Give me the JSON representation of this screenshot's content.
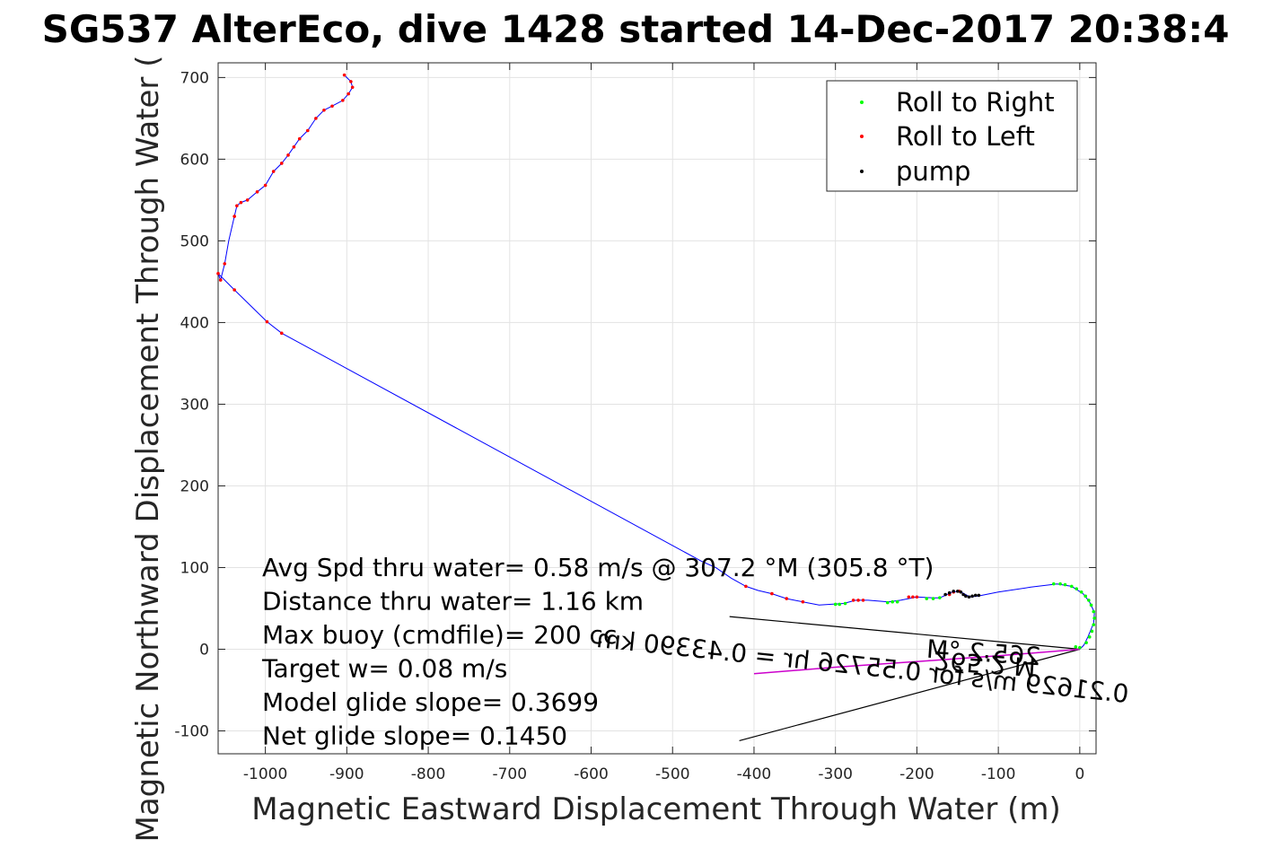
{
  "chart_data": {
    "type": "line",
    "title": "SG537 AlterEco, dive 1428 started 14-Dec-2017 20:38:4",
    "xlabel": "Magnetic Eastward Displacement Through Water (m)",
    "ylabel": "Magnetic Northward Displacement Through Water (",
    "xlim": [
      -1058,
      20
    ],
    "ylim": [
      -128,
      718
    ],
    "xticks": [
      -1000,
      -900,
      -800,
      -700,
      -600,
      -500,
      -400,
      -300,
      -200,
      -100,
      0
    ],
    "yticks": [
      -100,
      0,
      100,
      200,
      300,
      400,
      500,
      600,
      700
    ],
    "xtick_labels": [
      "-1000",
      "-900",
      "-800",
      "-700",
      "-600",
      "-500",
      "-400",
      "-300",
      "-200",
      "-100",
      "0"
    ],
    "ytick_labels": [
      "-100",
      "0",
      "100",
      "200",
      "300",
      "400",
      "500",
      "600",
      "700"
    ],
    "grid": true,
    "legend_position": "top-right",
    "legend": [
      {
        "label": "Roll to Right",
        "color": "#00ff00"
      },
      {
        "label": "Roll to Left",
        "color": "#ff0000"
      },
      {
        "label": "pump",
        "color": "#000000"
      }
    ],
    "track": {
      "name": "track",
      "color": "#0000ff",
      "points": [
        [
          0,
          0
        ],
        [
          5,
          5
        ],
        [
          10,
          15
        ],
        [
          17,
          32
        ],
        [
          18,
          45
        ],
        [
          12,
          58
        ],
        [
          4,
          68
        ],
        [
          -10,
          77
        ],
        [
          -28,
          80
        ],
        [
          -60,
          76
        ],
        [
          -100,
          70
        ],
        [
          -125,
          65
        ],
        [
          -135,
          64
        ],
        [
          -142,
          68
        ],
        [
          -148,
          71
        ],
        [
          -157,
          70
        ],
        [
          -165,
          66
        ],
        [
          -172,
          63
        ],
        [
          -180,
          63
        ],
        [
          -200,
          64
        ],
        [
          -220,
          60
        ],
        [
          -235,
          58
        ],
        [
          -260,
          60
        ],
        [
          -275,
          60
        ],
        [
          -290,
          56
        ],
        [
          -305,
          55
        ],
        [
          -320,
          54
        ],
        [
          -340,
          58
        ],
        [
          -360,
          62
        ],
        [
          -378,
          68
        ],
        [
          -395,
          72
        ],
        [
          -410,
          77
        ],
        [
          -428,
          87
        ],
        [
          -447,
          100
        ],
        [
          -465,
          108
        ],
        [
          -980,
          387
        ],
        [
          -998,
          401
        ],
        [
          -1038,
          440
        ],
        [
          -1058,
          460
        ],
        [
          -1055,
          452
        ],
        [
          -1050,
          472
        ],
        [
          -1045,
          500
        ],
        [
          -1038,
          530
        ],
        [
          -1035,
          543
        ],
        [
          -1030,
          547
        ],
        [
          -1022,
          550
        ],
        [
          -1010,
          560
        ],
        [
          -1000,
          568
        ],
        [
          -990,
          585
        ],
        [
          -980,
          595
        ],
        [
          -972,
          605
        ],
        [
          -965,
          615
        ],
        [
          -958,
          625
        ],
        [
          -948,
          635
        ],
        [
          -938,
          650
        ],
        [
          -928,
          660
        ],
        [
          -918,
          665
        ],
        [
          -905,
          672
        ],
        [
          -898,
          680
        ],
        [
          -893,
          688
        ],
        [
          -895,
          695
        ],
        [
          -900,
          700
        ],
        [
          -903,
          703
        ]
      ]
    },
    "roll_right": {
      "name": "Roll to Right",
      "color": "#00ff00",
      "points": [
        [
          -5,
          3
        ],
        [
          0,
          2
        ],
        [
          8,
          8
        ],
        [
          12,
          15
        ],
        [
          15,
          22
        ],
        [
          17,
          30
        ],
        [
          18,
          38
        ],
        [
          17,
          46
        ],
        [
          14,
          54
        ],
        [
          11,
          60
        ],
        [
          7,
          65
        ],
        [
          2,
          70
        ],
        [
          -4,
          74
        ],
        [
          -10,
          77
        ],
        [
          -18,
          79
        ],
        [
          -24,
          80
        ],
        [
          -32,
          80
        ],
        [
          -300,
          55
        ],
        [
          -295,
          55
        ],
        [
          -288,
          56
        ],
        [
          -236,
          57
        ],
        [
          -230,
          58
        ],
        [
          -224,
          58
        ],
        [
          -188,
          62
        ],
        [
          -180,
          62
        ],
        [
          -172,
          63
        ]
      ]
    },
    "roll_left": {
      "name": "Roll to Left",
      "color": "#ff0000",
      "points": [
        [
          -903,
          703
        ],
        [
          -895,
          695
        ],
        [
          -893,
          688
        ],
        [
          -898,
          680
        ],
        [
          -905,
          672
        ],
        [
          -918,
          665
        ],
        [
          -928,
          660
        ],
        [
          -938,
          650
        ],
        [
          -948,
          635
        ],
        [
          -958,
          625
        ],
        [
          -965,
          615
        ],
        [
          -972,
          605
        ],
        [
          -980,
          595
        ],
        [
          -990,
          585
        ],
        [
          -1000,
          568
        ],
        [
          -1010,
          560
        ],
        [
          -1022,
          550
        ],
        [
          -1030,
          547
        ],
        [
          -1035,
          543
        ],
        [
          -1038,
          530
        ],
        [
          -1050,
          472
        ],
        [
          -1055,
          452
        ],
        [
          -1058,
          460
        ],
        [
          -1038,
          440
        ],
        [
          -998,
          401
        ],
        [
          -980,
          387
        ],
        [
          -410,
          77
        ],
        [
          -378,
          68
        ],
        [
          -360,
          62
        ],
        [
          -340,
          58
        ],
        [
          -278,
          60
        ],
        [
          -272,
          60
        ],
        [
          -266,
          60
        ],
        [
          -210,
          64
        ],
        [
          -205,
          64
        ],
        [
          -200,
          64
        ],
        [
          -160,
          67
        ],
        [
          -155,
          70
        ],
        [
          -148,
          71
        ]
      ]
    },
    "pump": {
      "name": "pump",
      "color": "#000000",
      "points": [
        [
          -165,
          67
        ],
        [
          -160,
          69
        ],
        [
          -155,
          71
        ],
        [
          -150,
          71
        ],
        [
          -146,
          70
        ],
        [
          -143,
          67
        ],
        [
          -140,
          65
        ],
        [
          -136,
          64
        ],
        [
          -132,
          65
        ],
        [
          -128,
          66
        ],
        [
          -124,
          66
        ]
      ]
    },
    "drift_line": {
      "name": "magenta",
      "color": "#cc00cc",
      "points": [
        [
          0,
          0
        ],
        [
          -100,
          -8
        ],
        [
          -200,
          -15
        ],
        [
          -300,
          -22
        ],
        [
          -400,
          -30
        ]
      ]
    },
    "wedge_lines": [
      {
        "points": [
          [
            0,
            0
          ],
          [
            -430,
            40
          ]
        ]
      },
      {
        "points": [
          [
            0,
            0
          ],
          [
            -418,
            -112
          ]
        ]
      }
    ],
    "annotations": [
      "Avg Spd thru water=  0.58 m/s @ 307.2 °M (305.8 °T)",
      "Distance thru water=  1.16 km",
      "Max buoy (cmdfile)= 200 cc",
      "Target w= 0.08 m/s",
      "Model glide slope= 0.3699",
      "Net glide slope= 0.1450"
    ],
    "flipped_annotations": [
      "265.2 M",
      "0.21629 m/s for 0.55726 hr = 0.43390 km",
      "265.2 °M"
    ]
  }
}
